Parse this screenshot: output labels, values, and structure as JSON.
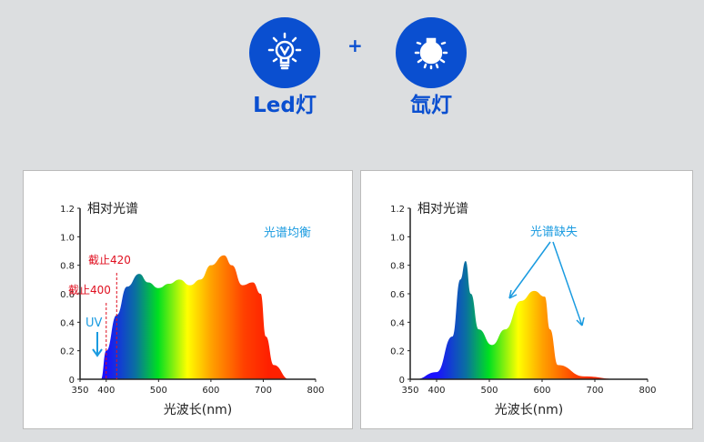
{
  "header": {
    "items": [
      {
        "label": "Led灯",
        "icon": "led-bulb-icon"
      },
      {
        "label": "氙灯",
        "icon": "xenon-bulb-icon"
      }
    ],
    "plus": "+",
    "accent": "#0a4fd0"
  },
  "chart_data": [
    {
      "type": "area",
      "ylabel": "相对光谱",
      "xlabel": "光波长(nm)",
      "xlim": [
        350,
        800
      ],
      "ylim": [
        0,
        1.2
      ],
      "xticks": [
        "350",
        "400",
        "500",
        "600",
        "700",
        "800"
      ],
      "xtick_values": [
        350,
        400,
        500,
        600,
        700,
        800
      ],
      "yticks": [
        "0",
        "0.2",
        "0.4",
        "0.6",
        "0.8",
        "1.0",
        "1.2"
      ],
      "ytick_values": [
        0,
        0.2,
        0.4,
        0.6,
        0.8,
        1.0,
        1.2
      ],
      "annotations": {
        "title": "光谱均衡",
        "cut420": "截止420",
        "cut400": "截止400",
        "uv": "UV"
      },
      "cut_lines": [
        400,
        420
      ],
      "x": [
        390,
        400,
        420,
        440,
        463,
        480,
        500,
        520,
        540,
        560,
        580,
        600,
        625,
        640,
        660,
        680,
        695,
        705,
        720,
        750
      ],
      "y": [
        0,
        0.2,
        0.45,
        0.65,
        0.74,
        0.68,
        0.64,
        0.67,
        0.7,
        0.66,
        0.7,
        0.8,
        0.87,
        0.8,
        0.66,
        0.68,
        0.6,
        0.3,
        0.1,
        0
      ],
      "fill": "spectrum gradient"
    },
    {
      "type": "area",
      "ylabel": "相对光谱",
      "xlabel": "光波长(nm)",
      "xlim": [
        350,
        800
      ],
      "ylim": [
        0,
        1.2
      ],
      "xticks": [
        "350",
        "400",
        "500",
        "600",
        "700",
        "800"
      ],
      "xtick_values": [
        350,
        400,
        500,
        600,
        700,
        800
      ],
      "yticks": [
        "0",
        "0.2",
        "0.4",
        "0.6",
        "0.8",
        "1.0",
        "1.2"
      ],
      "ytick_values": [
        0,
        0.2,
        0.4,
        0.6,
        0.8,
        1.0,
        1.2
      ],
      "annotations": {
        "title": "光谱缺失"
      },
      "x": [
        360,
        400,
        430,
        445,
        455,
        465,
        480,
        505,
        530,
        560,
        585,
        605,
        615,
        630,
        680,
        740
      ],
      "y": [
        0,
        0.05,
        0.3,
        0.7,
        0.83,
        0.6,
        0.35,
        0.24,
        0.35,
        0.55,
        0.62,
        0.58,
        0.35,
        0.1,
        0.02,
        0.002
      ],
      "fill": "spectrum gradient"
    }
  ]
}
